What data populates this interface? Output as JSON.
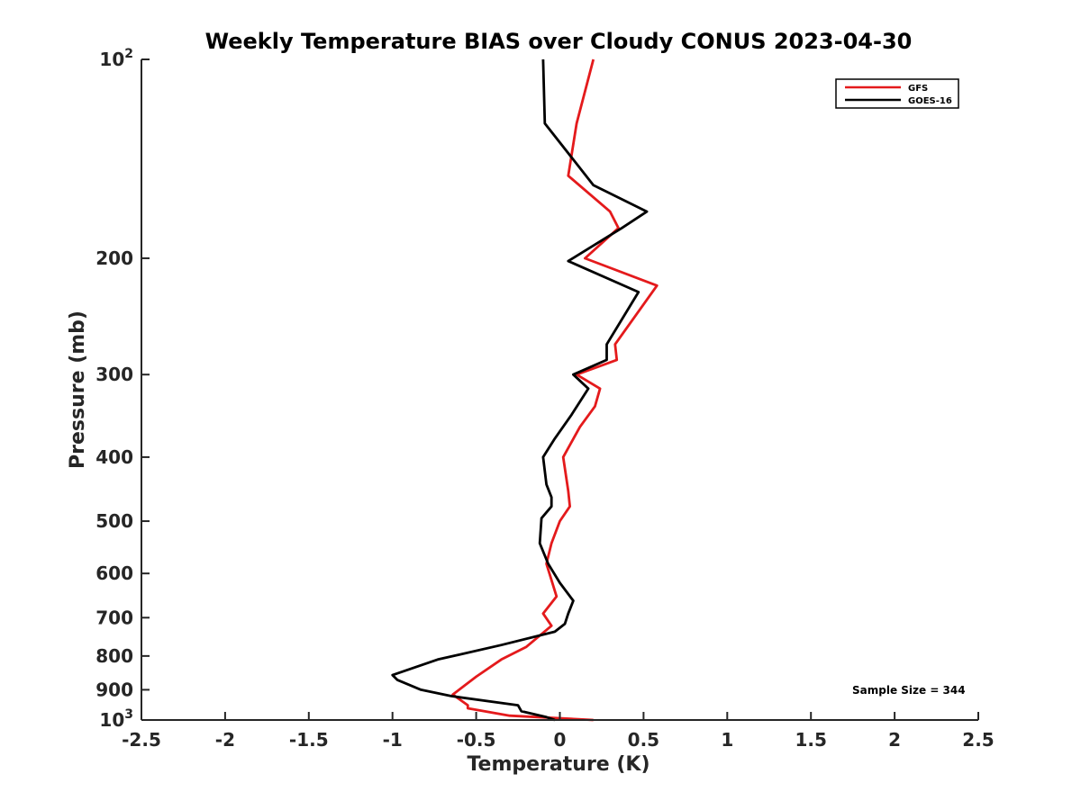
{
  "chart_data": {
    "type": "line",
    "title": "Weekly Temperature BIAS over Cloudy CONUS 2023-04-30",
    "xlabel": "Temperature (K)",
    "ylabel": "Pressure (mb)",
    "xlim": [
      -2.5,
      2.5
    ],
    "ylim": [
      100,
      1000
    ],
    "y_scale": "log",
    "y_reversed": true,
    "grid": false,
    "legend_position": "top-right",
    "x_ticks": [
      {
        "value": -2.5,
        "label": "-2.5"
      },
      {
        "value": -2,
        "label": "-2"
      },
      {
        "value": -1.5,
        "label": "-1.5"
      },
      {
        "value": -1,
        "label": "-1"
      },
      {
        "value": -0.5,
        "label": "-0.5"
      },
      {
        "value": 0,
        "label": "0"
      },
      {
        "value": 0.5,
        "label": "0.5"
      },
      {
        "value": 1,
        "label": "1"
      },
      {
        "value": 1.5,
        "label": "1.5"
      },
      {
        "value": 2,
        "label": "2"
      },
      {
        "value": 2.5,
        "label": "2.5"
      }
    ],
    "y_ticks": [
      {
        "value": 100,
        "label": "10",
        "sup": "2"
      },
      {
        "value": 200,
        "label": "200"
      },
      {
        "value": 300,
        "label": "300"
      },
      {
        "value": 400,
        "label": "400"
      },
      {
        "value": 500,
        "label": "500"
      },
      {
        "value": 600,
        "label": "600"
      },
      {
        "value": 700,
        "label": "700"
      },
      {
        "value": 800,
        "label": "800"
      },
      {
        "value": 900,
        "label": "900"
      },
      {
        "value": 1000,
        "label": "10",
        "sup": "3"
      }
    ],
    "series": [
      {
        "name": "GFS",
        "color": "#e41a1c",
        "points": [
          [
            0.2,
            100
          ],
          [
            0.1,
            125
          ],
          [
            0.05,
            150
          ],
          [
            0.3,
            170
          ],
          [
            0.35,
            180
          ],
          [
            0.15,
            200
          ],
          [
            0.58,
            220
          ],
          [
            0.33,
            270
          ],
          [
            0.34,
            285
          ],
          [
            0.1,
            300
          ],
          [
            0.24,
            315
          ],
          [
            0.21,
            335
          ],
          [
            0.12,
            360
          ],
          [
            0.02,
            400
          ],
          [
            0.05,
            450
          ],
          [
            0.06,
            475
          ],
          [
            0.0,
            500
          ],
          [
            -0.05,
            540
          ],
          [
            -0.08,
            580
          ],
          [
            -0.02,
            650
          ],
          [
            -0.1,
            690
          ],
          [
            -0.05,
            720
          ],
          [
            -0.2,
            775
          ],
          [
            -0.35,
            810
          ],
          [
            -0.5,
            860
          ],
          [
            -0.64,
            915
          ],
          [
            -0.55,
            950
          ],
          [
            -0.55,
            960
          ],
          [
            -0.3,
            985
          ],
          [
            0.2,
            1000
          ]
        ]
      },
      {
        "name": "GOES-16",
        "color": "#000000",
        "points": [
          [
            -0.1,
            100
          ],
          [
            -0.09,
            125
          ],
          [
            0.2,
            155
          ],
          [
            0.52,
            170
          ],
          [
            0.37,
            180
          ],
          [
            0.05,
            202
          ],
          [
            0.47,
            225
          ],
          [
            0.28,
            270
          ],
          [
            0.28,
            285
          ],
          [
            0.08,
            300
          ],
          [
            0.17,
            315
          ],
          [
            0.07,
            345
          ],
          [
            -0.03,
            375
          ],
          [
            -0.1,
            400
          ],
          [
            -0.08,
            440
          ],
          [
            -0.05,
            460
          ],
          [
            -0.05,
            475
          ],
          [
            -0.11,
            495
          ],
          [
            -0.12,
            540
          ],
          [
            -0.07,
            580
          ],
          [
            0.0,
            620
          ],
          [
            0.08,
            660
          ],
          [
            0.05,
            690
          ],
          [
            0.03,
            715
          ],
          [
            -0.03,
            735
          ],
          [
            -0.35,
            770
          ],
          [
            -0.73,
            810
          ],
          [
            -1.0,
            855
          ],
          [
            -0.97,
            870
          ],
          [
            -0.83,
            900
          ],
          [
            -0.65,
            920
          ],
          [
            -0.25,
            950
          ],
          [
            -0.23,
            970
          ],
          [
            -0.08,
            990
          ],
          [
            -0.03,
            1000
          ]
        ]
      }
    ],
    "annotation": "Sample Size = 344"
  }
}
